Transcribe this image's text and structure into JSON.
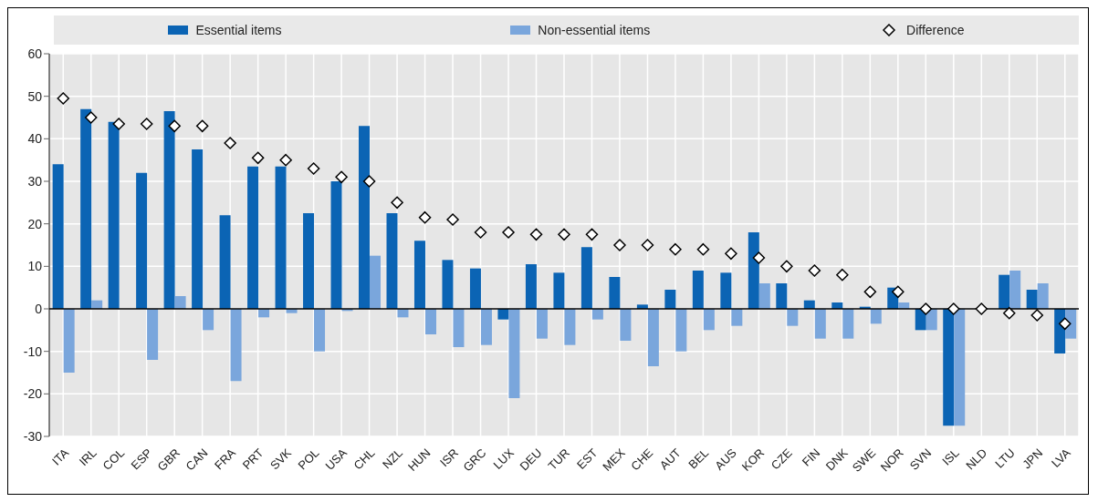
{
  "chart_data": {
    "type": "bar",
    "categories": [
      "ITA",
      "IRL",
      "COL",
      "ESP",
      "GBR",
      "CAN",
      "FRA",
      "PRT",
      "SVK",
      "POL",
      "USA",
      "CHL",
      "NZL",
      "HUN",
      "ISR",
      "GRC",
      "LUX",
      "DEU",
      "TUR",
      "EST",
      "MEX",
      "CHE",
      "AUT",
      "BEL",
      "AUS",
      "KOR",
      "CZE",
      "FIN",
      "DNK",
      "SWE",
      "NOR",
      "SVN",
      "ISL",
      "NLD",
      "LTU",
      "JPN",
      "LVA"
    ],
    "series": [
      {
        "name": "Essential items",
        "color": "#0b64b4",
        "values": [
          34,
          47,
          44,
          32,
          46.5,
          37.5,
          22,
          33.5,
          33.5,
          22.5,
          30,
          43,
          22.5,
          16,
          11.5,
          9.5,
          -2.5,
          10.5,
          8.5,
          14.5,
          7.5,
          1,
          4.5,
          9,
          8.5,
          18,
          6,
          2,
          1.5,
          0.5,
          5,
          -5,
          -27.5,
          0,
          8,
          4.5,
          -10.5
        ]
      },
      {
        "name": "Non-essential items",
        "color": "#7aa6dc",
        "values": [
          -15,
          2,
          0,
          -12,
          3,
          -5,
          -17,
          -2,
          -1,
          -10,
          -0.5,
          12.5,
          -2,
          -6,
          -9,
          -8.5,
          -21,
          -7,
          -8.5,
          -2.5,
          -7.5,
          -13.5,
          -10,
          -5,
          -4,
          6,
          -4,
          -7,
          -7,
          -3.5,
          1.5,
          -5,
          -27.5,
          0,
          9,
          6,
          -7
        ]
      },
      {
        "name": "Difference",
        "type": "scatter",
        "marker": "diamond",
        "color": "#000000",
        "values": [
          49.5,
          45,
          43.5,
          43.5,
          43,
          43,
          39,
          35.5,
          35,
          33,
          31,
          30,
          25,
          21.5,
          21,
          18,
          18,
          17.5,
          17.5,
          17.5,
          15,
          15,
          14,
          14,
          13,
          12,
          10,
          9,
          8,
          4,
          4,
          0,
          0,
          0,
          -1,
          -1.5,
          -3.5
        ]
      }
    ],
    "ylim": [
      -30,
      60
    ],
    "yticks": [
      -30,
      -20,
      -10,
      0,
      10,
      20,
      30,
      40,
      50,
      60
    ],
    "grid": true,
    "legend": "top"
  }
}
